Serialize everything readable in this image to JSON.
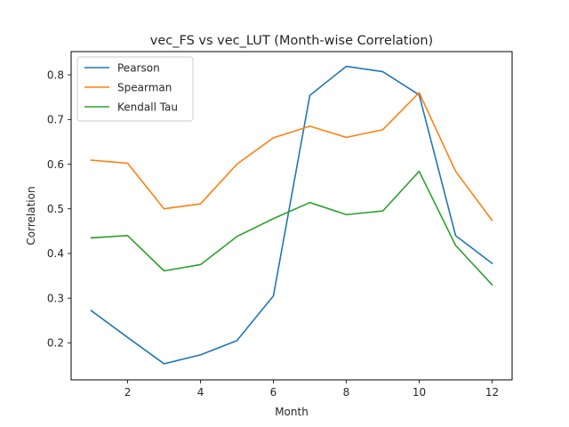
{
  "chart_data": {
    "type": "line",
    "title": "vec_FS vs vec_LUT (Month-wise Correlation)",
    "xlabel": "Month",
    "ylabel": "Correlation",
    "x": [
      1,
      2,
      3,
      4,
      5,
      6,
      7,
      8,
      9,
      10,
      11,
      12
    ],
    "xlim": [
      0.45,
      12.55
    ],
    "ylim": [
      0.117,
      0.852
    ],
    "xticks": [
      2,
      4,
      6,
      8,
      10,
      12
    ],
    "yticks": [
      0.2,
      0.3,
      0.4,
      0.5,
      0.6,
      0.7,
      0.8
    ],
    "legend_position": "upper-left",
    "grid": false,
    "series": [
      {
        "name": "Pearson",
        "color": "#1f77b4",
        "values": [
          0.272,
          0.212,
          0.153,
          0.173,
          0.205,
          0.305,
          0.754,
          0.819,
          0.807,
          0.755,
          0.44,
          0.378
        ]
      },
      {
        "name": "Spearman",
        "color": "#ff7f0e",
        "values": [
          0.609,
          0.602,
          0.5,
          0.511,
          0.6,
          0.659,
          0.685,
          0.66,
          0.677,
          0.76,
          0.584,
          0.474
        ]
      },
      {
        "name": "Kendall Tau",
        "color": "#2ca02c",
        "values": [
          0.435,
          0.44,
          0.361,
          0.375,
          0.438,
          0.478,
          0.514,
          0.487,
          0.495,
          0.584,
          0.418,
          0.33
        ]
      }
    ]
  }
}
